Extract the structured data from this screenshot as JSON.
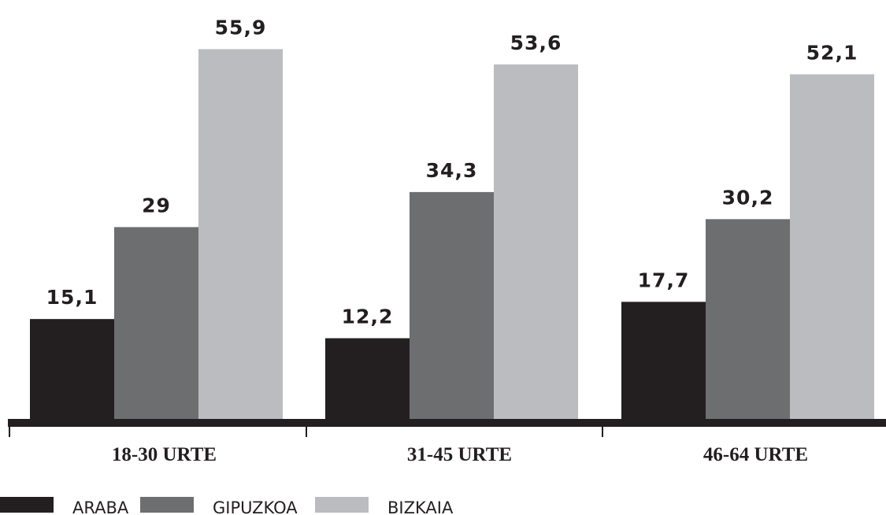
{
  "chart_data": {
    "type": "bar",
    "title": "",
    "xlabel": "",
    "ylabel": "",
    "categories": [
      "18-30 URTE",
      "31-45 URTE",
      "46-64 URTE"
    ],
    "series": [
      {
        "name": "ARABA",
        "values": [
          15.1,
          12.2,
          17.7
        ],
        "labels": [
          "15,1",
          "12,2",
          "17,7"
        ],
        "color": "#231f20"
      },
      {
        "name": "GIPUZKOA",
        "values": [
          29,
          34.3,
          30.2
        ],
        "labels": [
          "29",
          "34,3",
          "30,2"
        ],
        "color": "#6d6e70"
      },
      {
        "name": "BIZKAIA",
        "values": [
          55.9,
          53.6,
          52.1
        ],
        "labels": [
          "55,9",
          "53,6",
          "52,1"
        ],
        "color": "#bbbcbf"
      }
    ],
    "ylim": [
      0,
      59
    ],
    "grid": false,
    "legend_position": "bottom-left"
  }
}
